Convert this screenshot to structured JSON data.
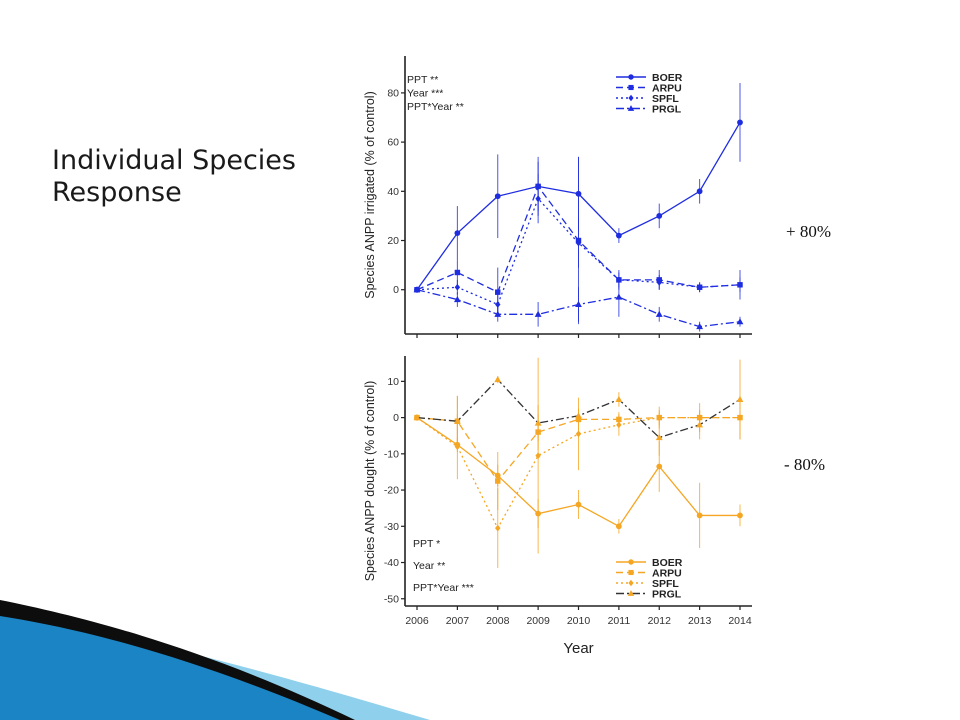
{
  "slide": {
    "title_line1": "Individual Species",
    "title_line2": "Response",
    "annotation_top": "+ 80%",
    "annotation_bottom": "- 80%"
  },
  "colors": {
    "irrigated": "#1f2de0",
    "drought": "#f5a623",
    "prgl_drought": "#333333",
    "axis": "#222222",
    "deco_dark": "#0d0d0d",
    "deco_blue": "#1b84c4",
    "deco_light": "#8fd0ec"
  },
  "chart_data": [
    {
      "type": "line",
      "panel": "irrigated",
      "ylabel": "Species ANPP irrigated (% of control)",
      "xlabel": "",
      "x": [
        2006,
        2007,
        2008,
        2009,
        2010,
        2011,
        2012,
        2013,
        2014
      ],
      "ylim": [
        -18,
        95
      ],
      "yticks": [
        0,
        20,
        40,
        60,
        80
      ],
      "grid": false,
      "legend_position": "top-right",
      "stats": [
        "PPT **",
        "Year ***",
        "PPT*Year **"
      ],
      "series": [
        {
          "name": "BOER",
          "marker": "circle",
          "dash": "solid",
          "values": [
            0,
            23,
            38,
            42,
            39,
            22,
            30,
            40,
            68
          ],
          "err": [
            0,
            11,
            17,
            12,
            15,
            3,
            5,
            5,
            16
          ]
        },
        {
          "name": "ARPU",
          "marker": "square",
          "dash": "dashed",
          "values": [
            0,
            7,
            -1,
            42,
            20,
            4,
            4,
            1,
            2
          ],
          "err": [
            0,
            5,
            10,
            10,
            34,
            4,
            4,
            2,
            6
          ]
        },
        {
          "name": "SPFL",
          "marker": "diamond",
          "dash": "dotted",
          "values": [
            0,
            1,
            -6,
            37,
            19,
            4,
            3,
            1,
            2
          ],
          "err": [
            0,
            3,
            4,
            10,
            10,
            3,
            3,
            2,
            3
          ]
        },
        {
          "name": "PRGL",
          "marker": "triangle",
          "dash": "dashdot",
          "values": [
            0,
            -4,
            -10,
            -10,
            -6,
            -3,
            -10,
            -15,
            -13
          ],
          "err": [
            0,
            3,
            3,
            5,
            7,
            8,
            3,
            2,
            2
          ]
        }
      ]
    },
    {
      "type": "line",
      "panel": "drought",
      "ylabel": "Species ANPP dought (% of control)",
      "xlabel": "Year",
      "x": [
        2006,
        2007,
        2008,
        2009,
        2010,
        2011,
        2012,
        2013,
        2014
      ],
      "ylim": [
        -52,
        17
      ],
      "yticks": [
        10,
        0,
        -10,
        -20,
        -30,
        -40,
        -50
      ],
      "grid": false,
      "legend_position": "bottom-right",
      "stats": [
        "PPT  *",
        "Year  **",
        "PPT*Year ***"
      ],
      "series": [
        {
          "name": "BOER",
          "marker": "circle",
          "dash": "solid",
          "values": [
            0,
            -7.5,
            -16,
            -26.5,
            -24,
            -30,
            -13.5,
            -27,
            -27
          ],
          "err": [
            0,
            2,
            3,
            4,
            4,
            2,
            7,
            9,
            3
          ]
        },
        {
          "name": "ARPU",
          "marker": "square",
          "dash": "dashed",
          "values": [
            0,
            -1,
            -17.5,
            -4,
            -0.5,
            -0.5,
            0,
            0,
            0
          ],
          "err": [
            0,
            7,
            8,
            5,
            3,
            2,
            2,
            4,
            6
          ]
        },
        {
          "name": "SPFL",
          "marker": "diamond",
          "dash": "dotted",
          "values": [
            0,
            -8,
            -30.5,
            -10.5,
            -4.5,
            -2,
            0,
            0,
            0
          ],
          "err": [
            0,
            9,
            11,
            27,
            10,
            3,
            3,
            2,
            2
          ]
        },
        {
          "name": "PRGL",
          "marker": "triangle",
          "dash": "dashdot",
          "values": [
            0,
            -1,
            10.5,
            -1.5,
            0.5,
            5,
            -5.5,
            -2,
            5
          ],
          "err": [
            0,
            7,
            1,
            5,
            2,
            2,
            5,
            4,
            11
          ]
        }
      ]
    }
  ]
}
